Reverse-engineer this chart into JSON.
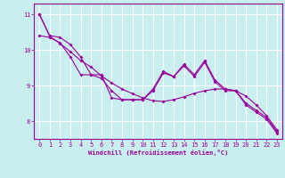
{
  "xlabel": "Windchill (Refroidissement éolien,°C)",
  "background_color": "#c8eef0",
  "grid_color": "#ffffff",
  "line_color": "#990099",
  "x": [
    0,
    1,
    2,
    3,
    4,
    5,
    6,
    7,
    8,
    9,
    10,
    11,
    12,
    13,
    14,
    15,
    16,
    17,
    18,
    19,
    20,
    21,
    22,
    23
  ],
  "line1": [
    11.0,
    10.4,
    10.35,
    10.15,
    9.8,
    9.3,
    9.3,
    8.65,
    8.6,
    8.6,
    8.6,
    8.9,
    9.4,
    9.25,
    9.6,
    9.3,
    9.7,
    9.15,
    8.9,
    8.85,
    8.5,
    8.3,
    8.1,
    7.7
  ],
  "line2": [
    10.4,
    10.35,
    10.2,
    9.8,
    9.3,
    9.3,
    9.2,
    8.85,
    8.6,
    8.6,
    8.6,
    8.85,
    9.35,
    9.25,
    9.55,
    9.25,
    9.65,
    9.1,
    8.85,
    8.85,
    8.45,
    8.25,
    8.05,
    7.65
  ],
  "line3": [
    11.0,
    10.38,
    10.18,
    9.95,
    9.7,
    9.52,
    9.27,
    9.07,
    8.9,
    8.77,
    8.65,
    8.57,
    8.55,
    8.6,
    8.68,
    8.78,
    8.85,
    8.9,
    8.9,
    8.85,
    8.7,
    8.45,
    8.15,
    7.75
  ],
  "ylim": [
    7.5,
    11.3
  ],
  "yticks": [
    8,
    9,
    10,
    11
  ],
  "xlim": [
    -0.5,
    23.5
  ]
}
